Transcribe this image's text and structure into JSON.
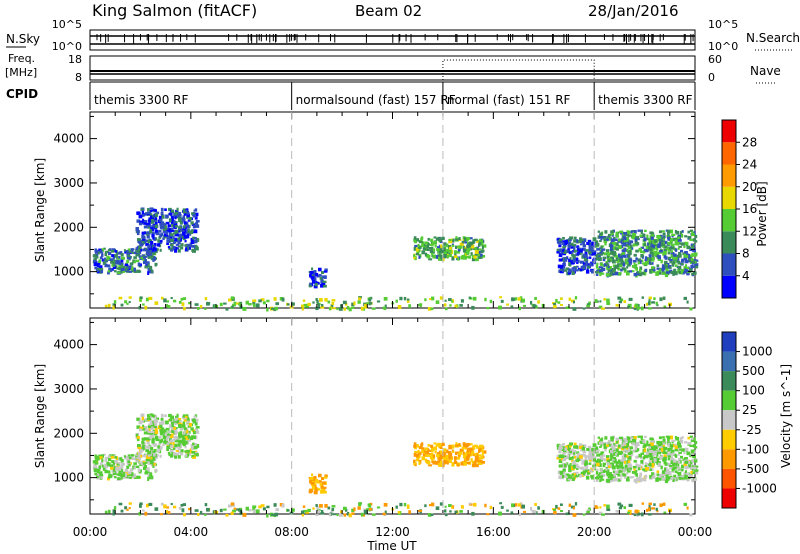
{
  "header": {
    "station": "King Salmon (fitACF)",
    "beam": "Beam 02",
    "date": "28/Jan/2016"
  },
  "strip_labels": {
    "nsky": "N.Sky",
    "freq_line1": "Freq.",
    "freq_line2": "[MHz]",
    "cpid": "CPID",
    "nsearch": "N.Search",
    "nave": "Nave",
    "nsky_ticks": [
      "10^5",
      "10^0"
    ],
    "nsearch_ticks": [
      "10^5",
      "10^0"
    ],
    "freq_ticks": [
      "18",
      "8"
    ],
    "nave_ticks": [
      "60",
      "0"
    ]
  },
  "cpid_segments": [
    {
      "label": "themis 3300 RF",
      "start": 0,
      "end": 8
    },
    {
      "label": "normalsound (fast) 157 RF",
      "start": 8,
      "end": 14
    },
    {
      "label": "normal (fast) 151 RF",
      "start": 14,
      "end": 20
    },
    {
      "label": "themis 3300 RF",
      "start": 20,
      "end": 24
    }
  ],
  "axes": {
    "ylabel": "Slant Range [km]",
    "xlabel": "Time UT",
    "yticks": [
      "1000",
      "2000",
      "3000",
      "4000"
    ],
    "xticks": [
      "00:00",
      "04:00",
      "08:00",
      "12:00",
      "16:00",
      "20:00",
      "00:00"
    ]
  },
  "power_colorbar": {
    "label": "Power [dB]",
    "ticks": [
      "4",
      "8",
      "12",
      "16",
      "20",
      "24",
      "28"
    ],
    "colors": [
      "#0000ff",
      "#2f4fbf",
      "#3a8a5a",
      "#55cc33",
      "#e8d800",
      "#ff9a00",
      "#ff6600",
      "#ee0000"
    ]
  },
  "velocity_colorbar": {
    "label": "Velocity [m s^-1]",
    "ticks": [
      "1000",
      "500",
      "100",
      "25",
      "-25",
      "-100",
      "-500",
      "-1000"
    ],
    "colors": [
      "#1f3fbf",
      "#3a6fb0",
      "#3a8a5a",
      "#55cc33",
      "#c8c8c8",
      "#ffcc00",
      "#ff9900",
      "#ff5500",
      "#ee0000"
    ]
  },
  "chart_data": {
    "type": "heatmap",
    "title": "King Salmon (fitACF)",
    "xlabel": "Time UT",
    "ylabel": "Slant Range [km]",
    "x_range_hours": [
      0,
      24
    ],
    "y_range_km": [
      180,
      4600
    ],
    "grid": false,
    "echo_regions": [
      {
        "t_start": 0.1,
        "t_end": 2.6,
        "range_min": 1000,
        "range_max": 1550,
        "power_db": 8,
        "velocity_ms": 25
      },
      {
        "t_start": 1.8,
        "t_end": 4.2,
        "range_min": 1500,
        "range_max": 2450,
        "power_db": 6,
        "velocity_ms": 25
      },
      {
        "t_start": 8.6,
        "t_end": 9.3,
        "range_min": 700,
        "range_max": 1100,
        "power_db": 6,
        "velocity_ms": -100
      },
      {
        "t_start": 12.8,
        "t_end": 15.6,
        "range_min": 1300,
        "range_max": 1800,
        "power_db": 12,
        "velocity_ms": -100
      },
      {
        "t_start": 18.5,
        "t_end": 20.0,
        "range_min": 1000,
        "range_max": 1800,
        "power_db": 6,
        "velocity_ms": 25
      },
      {
        "t_start": 20.0,
        "t_end": 24.0,
        "range_min": 950,
        "range_max": 1950,
        "power_db": 10,
        "velocity_ms": 25
      },
      {
        "t_start": 0.2,
        "t_end": 23.8,
        "range_min": 180,
        "range_max": 450,
        "power_db": 14,
        "velocity_ms": 100
      }
    ]
  }
}
